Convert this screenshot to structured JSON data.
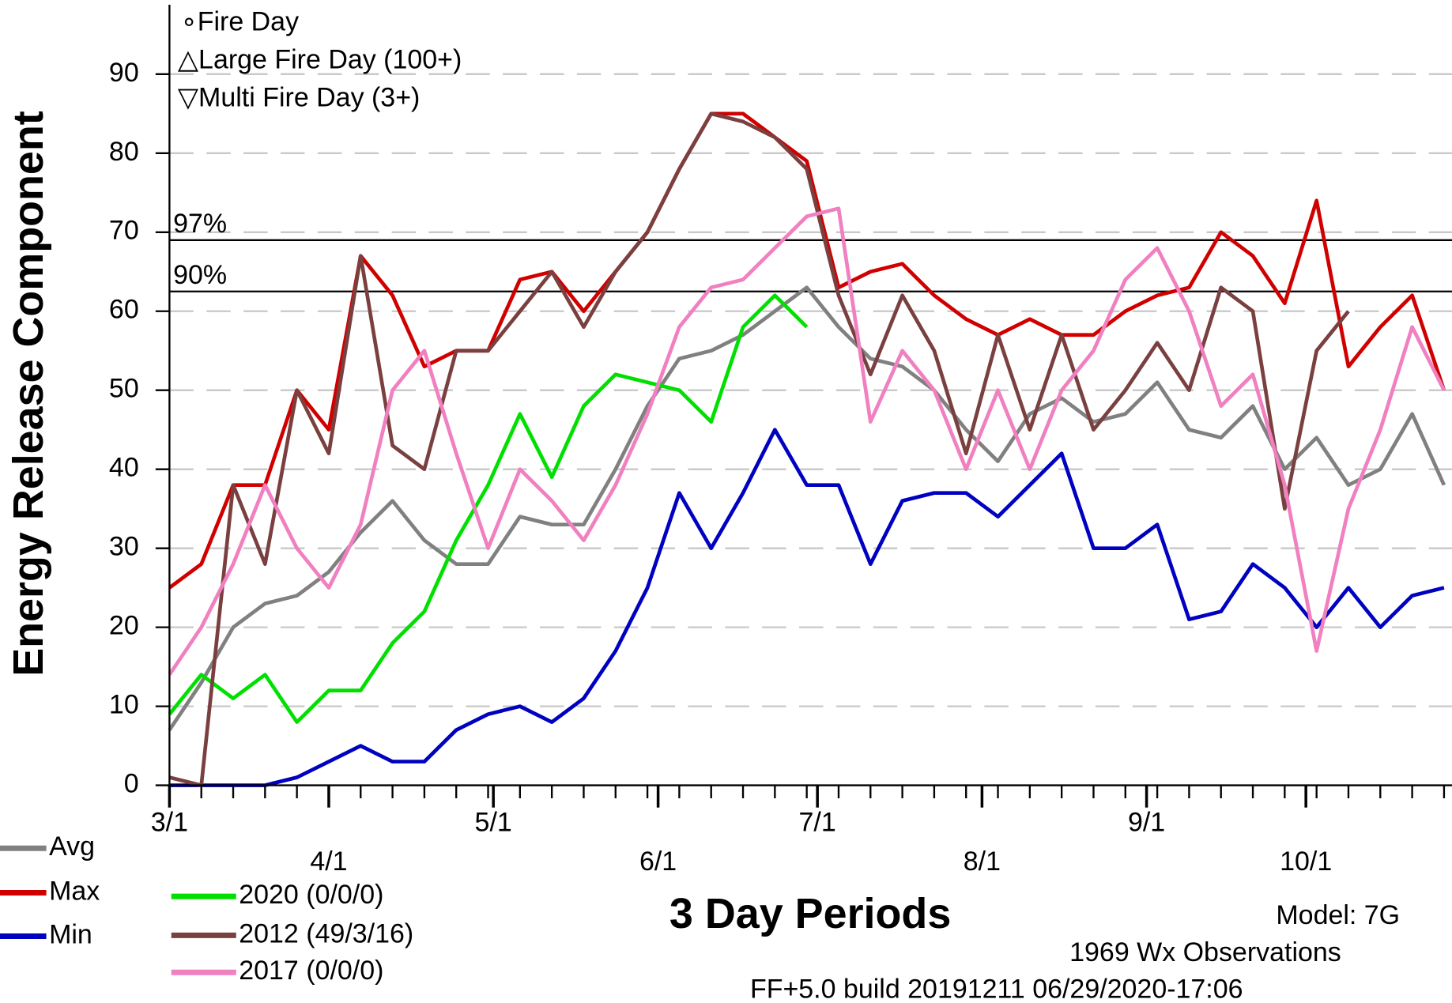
{
  "chart_data": {
    "type": "line",
    "annotations": [
      "∘Fire Day",
      "△Large Fire Day (100+)",
      "▽Multi Fire Day (3+)"
    ],
    "x_label": "3 Day Periods",
    "y_label": "Energy Release Component",
    "footer": [
      "Model: 7G",
      "1969 Wx Observations",
      "FF+5.0 build 20191211 06/29/2020-17:06"
    ],
    "x": [
      0,
      2,
      4,
      6,
      8,
      10,
      12,
      14,
      16,
      18,
      20,
      22,
      24,
      26,
      28,
      30,
      32,
      34,
      36,
      38,
      40,
      42,
      44,
      46,
      48,
      50,
      52,
      54,
      56,
      58,
      60,
      62,
      64,
      66,
      68,
      70,
      72,
      74,
      76,
      78,
      80
    ],
    "xlim": [
      0,
      80.5
    ],
    "xticks": [
      {
        "value": 0,
        "label": "3/1"
      },
      {
        "value": 10,
        "label": "4/1"
      },
      {
        "value": 20.33,
        "label": "5/1"
      },
      {
        "value": 30.67,
        "label": "6/1"
      },
      {
        "value": 40.67,
        "label": "7/1"
      },
      {
        "value": 51,
        "label": "8/1"
      },
      {
        "value": 61.33,
        "label": "9/1"
      },
      {
        "value": 71.33,
        "label": "10/1"
      }
    ],
    "ylim": [
      0,
      90
    ],
    "yticks": [
      0,
      10,
      20,
      30,
      40,
      50,
      60,
      70,
      80,
      90
    ],
    "grid": true,
    "reference_lines": [
      {
        "label": "97%",
        "value": 69
      },
      {
        "label": "90%",
        "value": 62.5
      }
    ],
    "series": [
      {
        "name": "Avg",
        "color": "#808080",
        "values": [
          7,
          13,
          20,
          23,
          24,
          27,
          32,
          36,
          31,
          28,
          28,
          34,
          33,
          33,
          40,
          48,
          54,
          55,
          57,
          60,
          63,
          58,
          54,
          53,
          50,
          45,
          41,
          47,
          49,
          46,
          47,
          51,
          45,
          44,
          48,
          40,
          44,
          38,
          40,
          47,
          38
        ]
      },
      {
        "name": "Max",
        "color": "#d00000",
        "values": [
          25,
          28,
          38,
          38,
          50,
          45,
          67,
          62,
          53,
          55,
          55,
          64,
          65,
          60,
          65,
          70,
          78,
          85,
          85,
          82,
          79,
          63,
          65,
          66,
          62,
          59,
          57,
          59,
          57,
          57,
          60,
          62,
          63,
          70,
          67,
          61,
          74,
          53,
          58,
          62,
          50
        ]
      },
      {
        "name": "Min",
        "color": "#0000c0",
        "values": [
          0,
          0,
          0,
          0,
          1,
          3,
          5,
          3,
          3,
          7,
          9,
          10,
          8,
          11,
          17,
          25,
          37,
          30,
          37,
          45,
          38,
          38,
          28,
          36,
          37,
          37,
          34,
          38,
          42,
          30,
          30,
          33,
          21,
          22,
          28,
          25,
          20,
          25,
          20,
          24,
          25
        ]
      },
      {
        "name": "2020 (0/0/0)",
        "color": "#00e000",
        "values": [
          9,
          14,
          11,
          14,
          8,
          12,
          12,
          18,
          22,
          31,
          38,
          47,
          39,
          48,
          52,
          51,
          50,
          46,
          58,
          62,
          58,
          null,
          null,
          null,
          null,
          null,
          null,
          null,
          null,
          null,
          null,
          null,
          null,
          null,
          null,
          null,
          null,
          null,
          null,
          null,
          null
        ]
      },
      {
        "name": "2012 (49/3/16)",
        "color": "#7a4040",
        "values": [
          1,
          0,
          38,
          28,
          50,
          42,
          67,
          43,
          40,
          55,
          55,
          60,
          65,
          58,
          65,
          70,
          78,
          85,
          84,
          82,
          78,
          62,
          52,
          62,
          55,
          42,
          57,
          45,
          57,
          45,
          50,
          56,
          50,
          63,
          60,
          35,
          55,
          60,
          null,
          null,
          null
        ]
      },
      {
        "name": "2017 (0/0/0)",
        "color": "#f080c0",
        "values": [
          14,
          20,
          28,
          38,
          30,
          25,
          33,
          50,
          55,
          42,
          30,
          40,
          36,
          31,
          38,
          47,
          58,
          63,
          64,
          68,
          72,
          73,
          46,
          55,
          50,
          40,
          50,
          40,
          50,
          55,
          64,
          68,
          60,
          48,
          52,
          38,
          17,
          35,
          45,
          58,
          50
        ]
      }
    ]
  }
}
